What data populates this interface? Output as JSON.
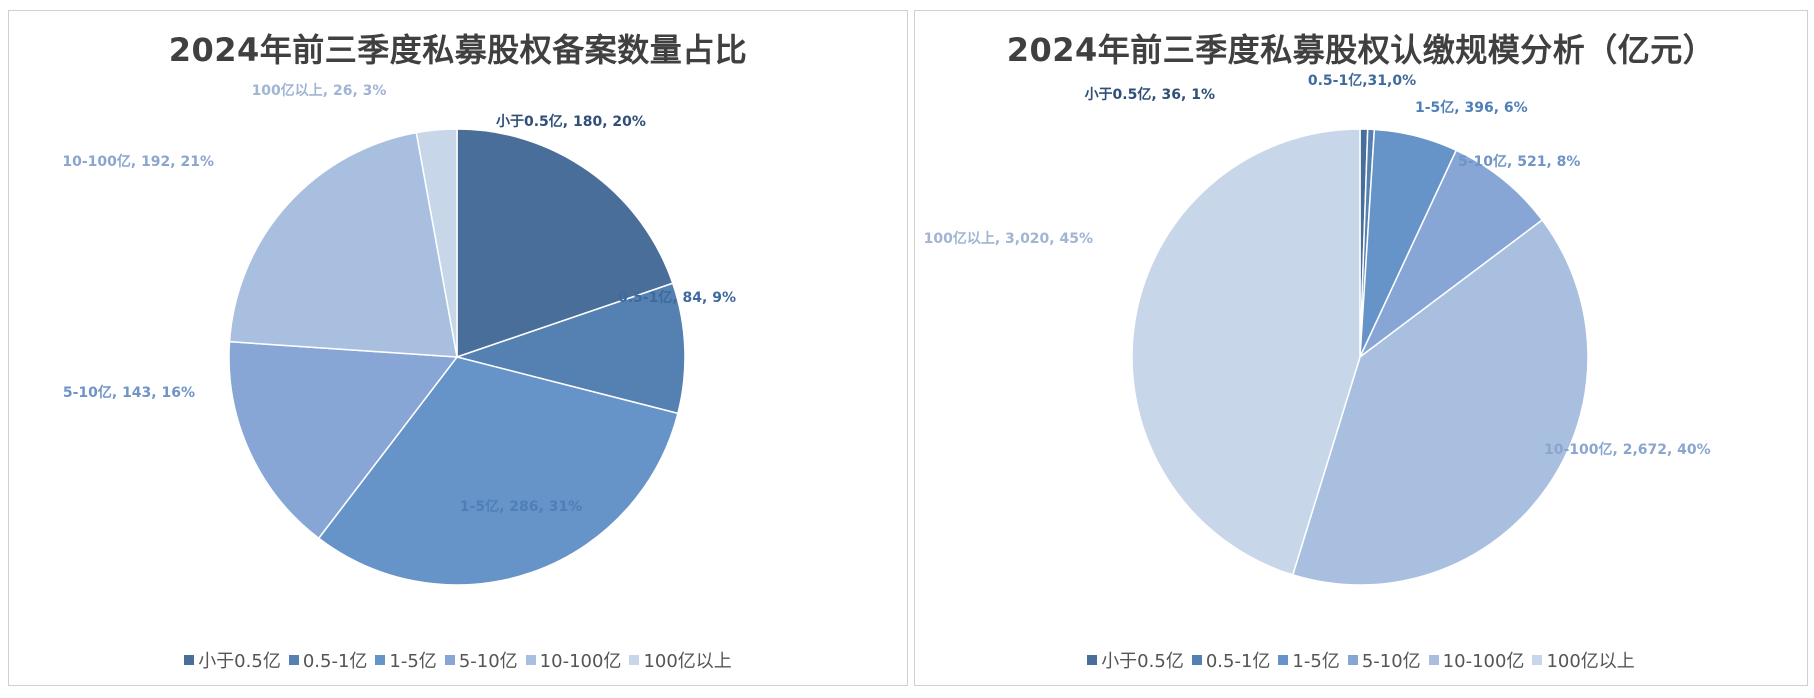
{
  "colors": [
    "#4a6e9a",
    "#5580b2",
    "#6693c8",
    "#87a6d6",
    "#a9bfe0",
    "#c8d6ea"
  ],
  "label_colors": [
    "#2f4f78",
    "#3f6a9c",
    "#4f7fb8",
    "#6f94c8",
    "#8aa6cf",
    "#a0b4d4"
  ],
  "chart_data": [
    {
      "type": "pie",
      "title": "2024年前三季度私募股权备案数量占比",
      "categories": [
        "小于0.5亿",
        "0.5-1亿",
        "1-5亿",
        "5-10亿",
        "10-100亿",
        "100亿以上"
      ],
      "values": [
        180,
        84,
        286,
        143,
        192,
        26
      ],
      "percents": [
        "20%",
        "9%",
        "31%",
        "16%",
        "21%",
        "3%"
      ],
      "labels": [
        "小于0.5亿, 180, 20%",
        "0.5-1亿, 84, 9%",
        "1-5亿, 286, 31%",
        "5-10亿, 143, 16%",
        "10-100亿, 192, 21%",
        "100亿以上, 26, 3%"
      ],
      "legend_position": "bottom"
    },
    {
      "type": "pie",
      "title": "2024年前三季度私募股权认缴规模分析（亿元）",
      "categories": [
        "小于0.5亿",
        "0.5-1亿",
        "1-5亿",
        "5-10亿",
        "10-100亿",
        "100亿以上"
      ],
      "values": [
        36,
        31,
        396,
        521,
        2672,
        3020
      ],
      "percents": [
        "1%",
        "0%",
        "6%",
        "8%",
        "40%",
        "45%"
      ],
      "labels": [
        "小于0.5亿, 36, 1%",
        "0.5-1亿,31,0%",
        "1-5亿, 396, 6%",
        "5-10亿, 521, 8%",
        "10-100亿, 2,672, 40%",
        "100亿以上, 3,020, 45%"
      ],
      "legend_position": "bottom"
    }
  ]
}
